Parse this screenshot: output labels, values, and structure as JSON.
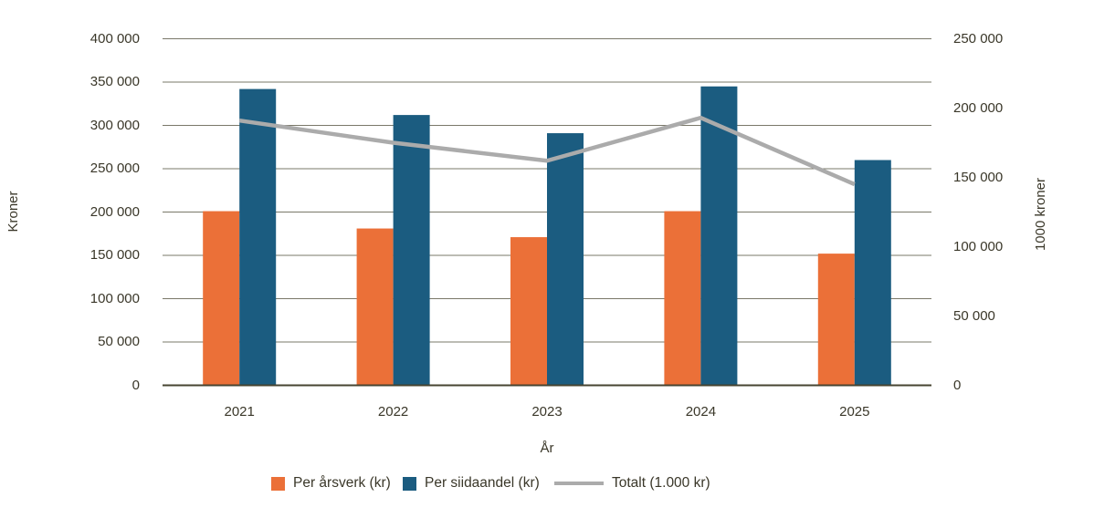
{
  "chart_data": {
    "type": "combo-bar-line",
    "title": "",
    "categories": [
      "2021",
      "2022",
      "2023",
      "2024",
      "2025"
    ],
    "series": [
      {
        "name": "Per årsverk (kr)",
        "type": "bar",
        "axis": "left",
        "color": "#EB7038",
        "values": [
          201000,
          181000,
          171000,
          201000,
          152000
        ]
      },
      {
        "name": "Per siidaandel (kr)",
        "type": "bar",
        "axis": "left",
        "color": "#1B5C80",
        "values": [
          342000,
          312000,
          291000,
          345000,
          260000
        ]
      },
      {
        "name": "Totalt (1.000 kr)",
        "type": "line",
        "axis": "right",
        "color": "#ABABAB",
        "values": [
          191000,
          175000,
          162000,
          193000,
          145000
        ]
      }
    ],
    "xlabel": "År",
    "ylabel_left": "Kroner",
    "ylabel_right": "1000 kroner",
    "left_axis": {
      "min": 0,
      "max": 400000,
      "step": 50000,
      "tick_labels": [
        "0",
        "50 000",
        "100 000",
        "150 000",
        "200 000",
        "250 000",
        "300 000",
        "350 000",
        "400 000"
      ]
    },
    "right_axis": {
      "min": 0,
      "max": 250000,
      "step": 50000,
      "tick_labels": [
        "0",
        "50 000",
        "100 000",
        "150 000",
        "200 000",
        "250 000"
      ]
    },
    "grid": true,
    "legend_position": "bottom",
    "styles": {
      "grid_color": "#7A7869",
      "axis_line_color": "#474431",
      "text_color": "#3A3729",
      "background": "#FFFFFF"
    }
  }
}
